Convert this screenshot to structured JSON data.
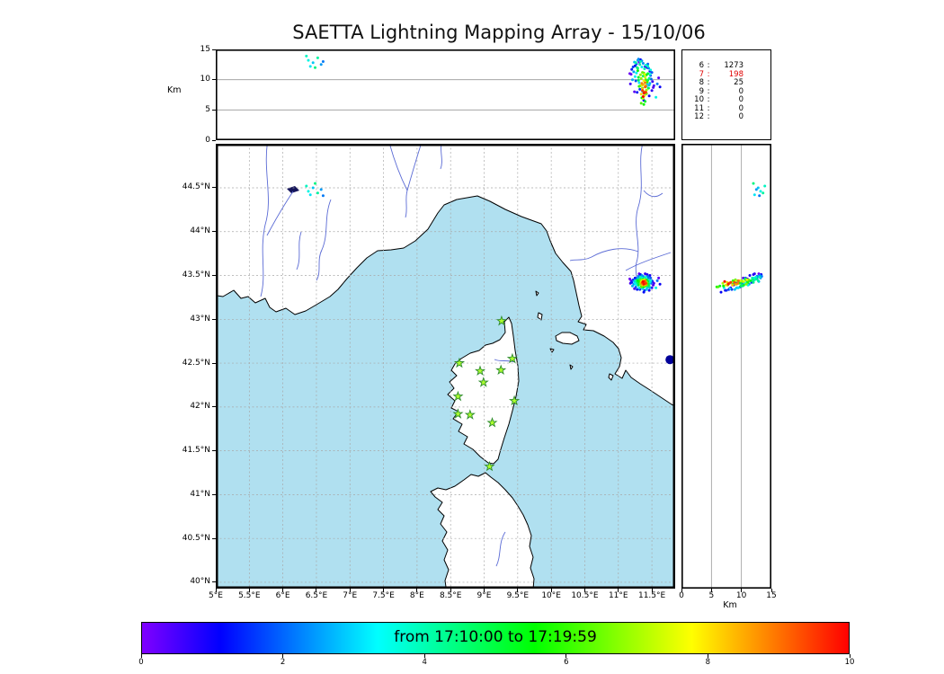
{
  "title": "SAETTA Lightning Mapping Array - 15/10/06",
  "panels": {
    "alt_lon": {
      "ylabel": "Km",
      "yticks": [
        [
          0,
          "0"
        ],
        [
          5,
          "5"
        ],
        [
          10,
          "10"
        ],
        [
          15,
          "15"
        ]
      ]
    },
    "alt_lat": {
      "xlabel": "Km",
      "xticks": [
        [
          0,
          "0"
        ],
        [
          5,
          "5"
        ],
        [
          10,
          "10"
        ],
        [
          15,
          "15"
        ]
      ]
    },
    "map": {
      "lat_ticks": [
        [
          44.5,
          "44.5°N"
        ],
        [
          44,
          "44°N"
        ],
        [
          43.5,
          "43.5°N"
        ],
        [
          43,
          "43°N"
        ],
        [
          42.5,
          "42.5°N"
        ],
        [
          42,
          "42°N"
        ],
        [
          41.5,
          "41.5°N"
        ],
        [
          41,
          "41°N"
        ],
        [
          40.5,
          "40.5°N"
        ],
        [
          40,
          "40°N"
        ]
      ],
      "lon_ticks": [
        [
          5,
          "5°E"
        ],
        [
          5.5,
          "5.5°E"
        ],
        [
          6,
          "6°E"
        ],
        [
          6.5,
          "6.5°E"
        ],
        [
          7,
          "7°E"
        ],
        [
          7.5,
          "7.5°E"
        ],
        [
          8,
          "8°E"
        ],
        [
          8.5,
          "8.5°E"
        ],
        [
          9,
          "9°E"
        ],
        [
          9.5,
          "9.5°E"
        ],
        [
          10,
          "10°E"
        ],
        [
          10.5,
          "10.5°E"
        ],
        [
          11,
          "11°E"
        ],
        [
          11.5,
          "11.5°E"
        ]
      ]
    }
  },
  "station_counts": [
    {
      "n": "6",
      "count": "1273",
      "highlight": false
    },
    {
      "n": "7",
      "count": "198",
      "highlight": true
    },
    {
      "n": "8",
      "count": "25",
      "highlight": false
    },
    {
      "n": "9",
      "count": "0",
      "highlight": false
    },
    {
      "n": "10",
      "count": "0",
      "highlight": false
    },
    {
      "n": "11",
      "count": "0",
      "highlight": false
    },
    {
      "n": "12",
      "count": "0",
      "highlight": false
    }
  ],
  "colorbar": {
    "label": "from 17:10:00 to 17:19:59",
    "ticks": [
      [
        0,
        "0"
      ],
      [
        2,
        "2"
      ],
      [
        4,
        "4"
      ],
      [
        6,
        "6"
      ],
      [
        8,
        "8"
      ],
      [
        10,
        "10"
      ]
    ],
    "range": [
      0,
      10
    ],
    "colors": [
      "#8000ff",
      "#0000ff",
      "#0080ff",
      "#00ffff",
      "#00ff80",
      "#00ff00",
      "#80ff00",
      "#ffff00",
      "#ff8000",
      "#ff0000"
    ]
  },
  "chart_data": {
    "type": "scatter",
    "title": "SAETTA Lightning Mapping Array - 15/10/06",
    "time_window": {
      "start": "17:10:00",
      "end": "17:19:59"
    },
    "color_scale": {
      "range": [
        0,
        10
      ]
    },
    "axes": {
      "lon_deg_e": [
        5.0,
        11.85
      ],
      "lat_deg_n": [
        39.93,
        45.0
      ],
      "alt_km": [
        0,
        15
      ]
    },
    "sources_format": [
      "lon_deg_e",
      "lat_deg_n",
      "alt_km",
      "time_color_value"
    ],
    "sources": [
      [
        11.2,
        43.42,
        11.7,
        1.4
      ],
      [
        11.25,
        43.47,
        12.3,
        1.2
      ],
      [
        11.33,
        43.51,
        13.3,
        1.0
      ],
      [
        11.43,
        43.51,
        12.0,
        0.8
      ],
      [
        11.51,
        43.43,
        9.7,
        0.6
      ],
      [
        11.52,
        43.39,
        8.7,
        0.4
      ],
      [
        11.19,
        43.44,
        10.9,
        0.2
      ],
      [
        11.28,
        43.34,
        7.9,
        1.3
      ],
      [
        11.38,
        43.31,
        6.6,
        1.1
      ],
      [
        11.46,
        43.33,
        7.3,
        0.9
      ],
      [
        11.5,
        43.36,
        8.2,
        0.7
      ],
      [
        11.18,
        43.41,
        9.3,
        0.5
      ],
      [
        11.24,
        43.35,
        8.0,
        0.3
      ],
      [
        11.31,
        43.52,
        12.9,
        0.1
      ],
      [
        11.47,
        43.5,
        11.4,
        0.95
      ],
      [
        11.53,
        43.41,
        9.0,
        0.45
      ],
      [
        11.17,
        43.46,
        11.0,
        0.15
      ],
      [
        11.4,
        43.52,
        12.2,
        0.65
      ],
      [
        11.24,
        43.43,
        12.9,
        2.8
      ],
      [
        11.29,
        43.47,
        13.2,
        2.6
      ],
      [
        11.37,
        43.49,
        12.7,
        2.4
      ],
      [
        11.45,
        43.47,
        11.9,
        2.2
      ],
      [
        11.49,
        43.41,
        10.1,
        2.0
      ],
      [
        11.26,
        43.37,
        9.8,
        1.8
      ],
      [
        11.32,
        43.34,
        8.4,
        1.6
      ],
      [
        11.42,
        43.34,
        8.9,
        2.9
      ],
      [
        11.47,
        43.36,
        9.4,
        2.7
      ],
      [
        11.23,
        43.4,
        11.3,
        2.5
      ],
      [
        11.3,
        43.49,
        13.4,
        2.3
      ],
      [
        11.44,
        43.49,
        12.6,
        2.1
      ],
      [
        11.5,
        43.44,
        11.2,
        1.9
      ],
      [
        11.22,
        43.45,
        12.1,
        1.7
      ],
      [
        11.39,
        43.33,
        7.5,
        1.5
      ],
      [
        11.35,
        43.5,
        13.1,
        2.45
      ],
      [
        11.48,
        43.47,
        10.7,
        1.95
      ],
      [
        11.21,
        43.38,
        10.0,
        2.65
      ],
      [
        11.28,
        43.42,
        12.0,
        4.4
      ],
      [
        11.32,
        43.46,
        12.5,
        4.2
      ],
      [
        11.39,
        43.47,
        11.8,
        4.0
      ],
      [
        11.44,
        43.45,
        12.2,
        3.8
      ],
      [
        11.47,
        43.42,
        10.9,
        3.6
      ],
      [
        11.27,
        43.39,
        11.1,
        3.4
      ],
      [
        11.31,
        43.36,
        9.5,
        3.2
      ],
      [
        11.43,
        43.36,
        9.2,
        3.0
      ],
      [
        11.46,
        43.38,
        10.2,
        4.3
      ],
      [
        11.26,
        43.44,
        12.8,
        4.1
      ],
      [
        11.33,
        43.48,
        13.0,
        3.9
      ],
      [
        11.41,
        43.48,
        12.4,
        3.7
      ],
      [
        11.48,
        43.44,
        11.6,
        3.5
      ],
      [
        11.25,
        43.41,
        10.5,
        3.3
      ],
      [
        11.36,
        43.35,
        8.1,
        3.1
      ],
      [
        11.35,
        43.47,
        12.1,
        3.25
      ],
      [
        11.33,
        43.4,
        10.8,
        6.8
      ],
      [
        11.36,
        43.45,
        11.2,
        6.5
      ],
      [
        11.41,
        43.44,
        10.0,
        6.2
      ],
      [
        11.43,
        43.41,
        9.6,
        6.0
      ],
      [
        11.31,
        43.43,
        8.9,
        5.8
      ],
      [
        11.35,
        43.38,
        7.0,
        5.5
      ],
      [
        11.4,
        43.38,
        6.4,
        5.2
      ],
      [
        11.44,
        43.43,
        11.0,
        5.0
      ],
      [
        11.3,
        43.41,
        9.9,
        4.8
      ],
      [
        11.37,
        43.46,
        10.6,
        4.6
      ],
      [
        11.42,
        43.39,
        7.7,
        6.6
      ],
      [
        11.34,
        43.37,
        6.1,
        6.3
      ],
      [
        11.29,
        43.44,
        11.5,
        5.4
      ],
      [
        11.45,
        43.4,
        8.6,
        4.9
      ],
      [
        11.38,
        43.37,
        5.9,
        5.7
      ],
      [
        11.3,
        43.39,
        10.4,
        5.1
      ],
      [
        11.44,
        43.38,
        9.9,
        4.7
      ],
      [
        11.38,
        43.42,
        11.1,
        5.9
      ],
      [
        11.33,
        43.45,
        9.0,
        6.4
      ],
      [
        11.42,
        43.45,
        10.8,
        5.6
      ],
      [
        11.29,
        43.45,
        11.9,
        4.5
      ],
      [
        11.46,
        43.44,
        9.1,
        2.75
      ],
      [
        11.36,
        43.42,
        8.2,
        9.5
      ],
      [
        11.38,
        43.4,
        7.8,
        9.8
      ],
      [
        11.4,
        43.42,
        8.8,
        9.2
      ],
      [
        11.35,
        43.41,
        9.4,
        8.8
      ],
      [
        11.37,
        43.43,
        7.2,
        10.0
      ],
      [
        11.39,
        43.41,
        8.0,
        9.0
      ],
      [
        11.41,
        43.4,
        9.0,
        8.5
      ],
      [
        11.36,
        43.39,
        8.5,
        8.2
      ],
      [
        11.34,
        43.42,
        7.6,
        8.0
      ],
      [
        11.38,
        43.44,
        9.8,
        7.8
      ],
      [
        11.4,
        43.43,
        10.4,
        7.5
      ],
      [
        11.37,
        43.41,
        6.9,
        7.2
      ],
      [
        11.42,
        43.42,
        8.3,
        7.0
      ],
      [
        11.35,
        43.44,
        9.1,
        7.4
      ],
      [
        11.39,
        43.39,
        7.4,
        7.9
      ],
      [
        11.34,
        43.43,
        10.2,
        6.9
      ],
      [
        11.37,
        43.4,
        9.2,
        8.4
      ],
      [
        11.41,
        43.41,
        7.9,
        9.4
      ],
      [
        11.36,
        43.44,
        8.6,
        6.1
      ],
      [
        11.39,
        43.45,
        10.9,
        7.6
      ],
      [
        11.4,
        43.44,
        9.5,
        8.9
      ],
      [
        11.27,
        43.46,
        12.6,
        1.85
      ],
      [
        11.58,
        43.44,
        9.3,
        2.15
      ],
      [
        11.62,
        43.4,
        8.8,
        1.05
      ],
      [
        11.56,
        43.36,
        7.1,
        3.45
      ],
      [
        11.6,
        43.47,
        10.3,
        0.35
      ],
      [
        6.38,
        44.46,
        13.2,
        3.5
      ],
      [
        6.45,
        44.5,
        12.8,
        2.9
      ],
      [
        6.52,
        44.44,
        13.6,
        4.1
      ],
      [
        6.41,
        44.42,
        12.2,
        3.2
      ],
      [
        6.57,
        44.48,
        12.5,
        2.5
      ],
      [
        6.35,
        44.52,
        13.9,
        3.8
      ],
      [
        6.48,
        44.55,
        12.0,
        4.4
      ],
      [
        6.6,
        44.41,
        13.0,
        2.2
      ]
    ],
    "lma_stations_lon_lat": [
      [
        9.26,
        42.98
      ],
      [
        8.63,
        42.5
      ],
      [
        8.94,
        42.41
      ],
      [
        9.25,
        42.42
      ],
      [
        9.42,
        42.55
      ],
      [
        8.99,
        42.28
      ],
      [
        8.61,
        42.12
      ],
      [
        9.45,
        42.07
      ],
      [
        8.61,
        41.92
      ],
      [
        8.79,
        41.91
      ],
      [
        9.12,
        41.82
      ],
      [
        9.08,
        41.32
      ]
    ],
    "special_marker": {
      "lon": 11.77,
      "lat": 42.54,
      "color": "#000099"
    }
  }
}
